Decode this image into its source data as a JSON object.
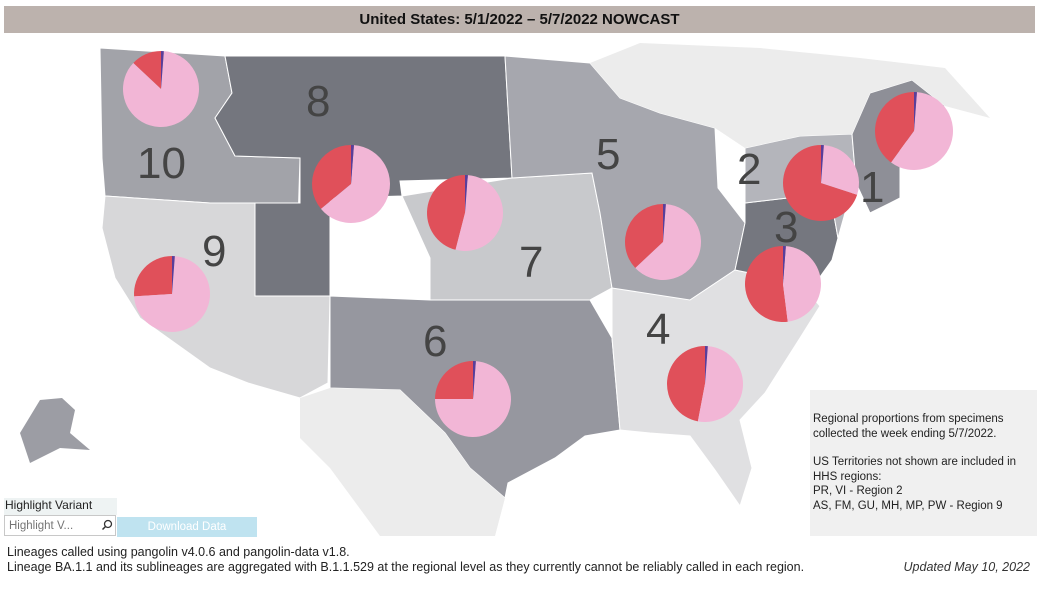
{
  "title": "United States: 5/1/2022 – 5/7/2022 NOWCAST",
  "regions": [
    {
      "label": "1",
      "red_share": 0.4
    },
    {
      "label": "2",
      "red_share": 0.7
    },
    {
      "label": "3",
      "red_share": 0.52
    },
    {
      "label": "4",
      "red_share": 0.47
    },
    {
      "label": "5",
      "red_share": 0.37
    },
    {
      "label": "6",
      "red_share": 0.25
    },
    {
      "label": "7",
      "red_share": 0.46
    },
    {
      "label": "8",
      "red_share": 0.36
    },
    {
      "label": "9",
      "red_share": 0.26
    },
    {
      "label": "10",
      "red_share": 0.13
    }
  ],
  "slice_colors": {
    "red": "#e0505a",
    "pink": "#f2b6d6",
    "purple": "#5a3e9a"
  },
  "note": {
    "line1": "Regional proportions from specimens",
    "line2": "collected the week ending 5/7/2022.",
    "line3": "US Territories not shown are included in",
    "line4": "HHS regions:",
    "line5": "PR, VI - Region 2",
    "line6": "AS, FM, GU, MH, MP, PW - Region 9"
  },
  "highlight": {
    "label": "Highlight Variant",
    "placeholder": "Highlight V..."
  },
  "download_label": "Download Data",
  "footer": {
    "line1": "Lineages called using pangolin v4.0.6 and pangolin-data v1.8.",
    "line2": "Lineage BA.1.1 and its sublineages are aggregated with B.1.1.529 at the regional level as they currently cannot be reliably called in each region."
  },
  "updated": "Updated May 10, 2022"
}
